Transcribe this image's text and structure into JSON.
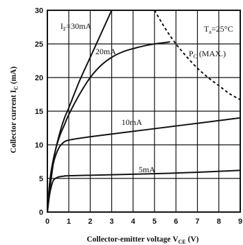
{
  "chart_data": {
    "type": "line",
    "xlabel": "Collector-emitter voltage V",
    "xlabel_sub": "CE",
    "xlabel_unit": " (V)",
    "ylabel": "Collector current I",
    "ylabel_sub": "C",
    "ylabel_unit": " (mA)",
    "xlim": [
      0,
      9
    ],
    "ylim": [
      0,
      30
    ],
    "x_ticks": [
      "0",
      "1",
      "2",
      "3",
      "4",
      "5",
      "6",
      "7",
      "8",
      "9"
    ],
    "y_ticks": [
      "0",
      "5",
      "10",
      "15",
      "20",
      "25",
      "30"
    ],
    "grid": true,
    "annotation": {
      "main": "T",
      "sub": "a",
      "rest": "=25°C"
    },
    "series": [
      {
        "name": "I_F=30mA",
        "label_main": "I",
        "label_sub": "F",
        "label_rest": "=30mA",
        "style": "solid",
        "x": [
          0,
          0.05,
          0.1,
          0.2,
          0.4,
          0.6,
          0.8,
          1.0,
          1.5,
          2.0,
          2.5,
          3.0
        ],
        "y": [
          0,
          2.0,
          4.0,
          6.5,
          9.5,
          12.0,
          14.0,
          15.5,
          19.5,
          23.0,
          26.5,
          30.0
        ]
      },
      {
        "name": "20mA",
        "label_main": "20mA",
        "label_sub": "",
        "label_rest": "",
        "style": "solid",
        "x": [
          0,
          0.05,
          0.1,
          0.2,
          0.4,
          0.6,
          0.8,
          1.0,
          1.5,
          2.0,
          2.5,
          3.0,
          3.5,
          4.0,
          4.5,
          5.0,
          5.5,
          5.7
        ],
        "y": [
          0,
          2.0,
          4.0,
          6.5,
          9.5,
          11.5,
          13.0,
          14.5,
          17.5,
          20.0,
          21.8,
          23.0,
          23.8,
          24.3,
          24.7,
          25.0,
          25.2,
          25.3
        ]
      },
      {
        "name": "10mA",
        "label_main": "10mA",
        "label_sub": "",
        "label_rest": "",
        "style": "solid",
        "x": [
          0,
          0.1,
          0.2,
          0.3,
          0.5,
          0.7,
          1.0,
          2.0,
          4.0,
          6.0,
          9.0
        ],
        "y": [
          0,
          3.0,
          5.5,
          7.5,
          9.3,
          10.2,
          10.7,
          11.2,
          12.0,
          12.8,
          14.0
        ]
      },
      {
        "name": "5mA",
        "label_main": "5mA",
        "label_sub": "",
        "label_rest": "",
        "style": "solid",
        "x": [
          0,
          0.1,
          0.2,
          0.3,
          0.5,
          0.8,
          1.0,
          3.0,
          6.0,
          9.0
        ],
        "y": [
          0,
          2.5,
          4.0,
          4.8,
          5.2,
          5.35,
          5.4,
          5.55,
          5.8,
          6.2
        ]
      },
      {
        "name": "P_C (MAX.)",
        "label_main": "P",
        "label_sub": "C",
        "label_rest": " (MAX.)",
        "style": "dashed",
        "x": [
          5.0,
          5.5,
          6.0,
          6.5,
          7.0,
          7.5,
          8.0,
          8.5,
          9.0
        ],
        "y": [
          30.0,
          27.3,
          25.0,
          23.1,
          21.4,
          20.0,
          18.8,
          17.6,
          16.7
        ]
      }
    ]
  }
}
